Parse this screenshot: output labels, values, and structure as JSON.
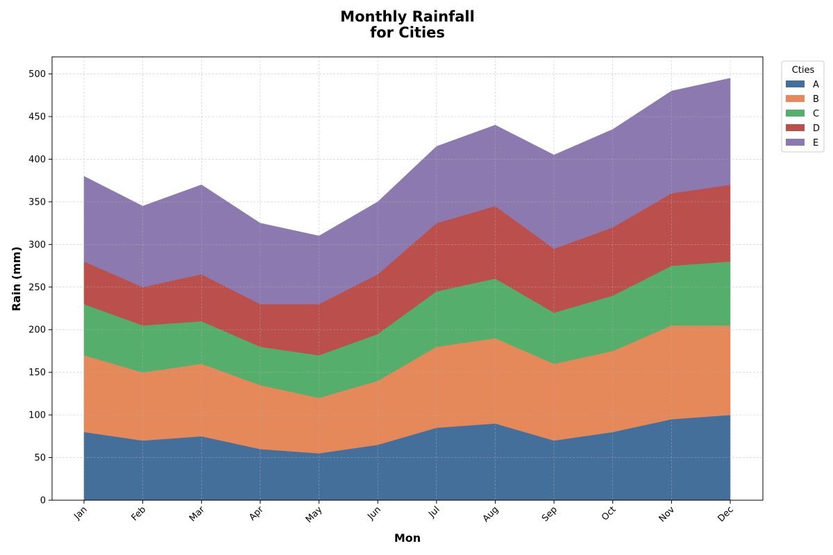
{
  "chart_data": {
    "type": "area",
    "stacked": true,
    "title_lines": [
      "Monthly Rainfall",
      "for Cities"
    ],
    "xlabel": "Mon",
    "ylabel": "Rain (mm)",
    "categories": [
      "Jan",
      "Feb",
      "Mar",
      "Apr",
      "May",
      "Jun",
      "Jul",
      "Aug",
      "Sep",
      "Oct",
      "Nov",
      "Dec"
    ],
    "ylim": [
      0,
      520
    ],
    "yticks": [
      0,
      50,
      100,
      150,
      200,
      250,
      300,
      350,
      400,
      450,
      500
    ],
    "grid": true,
    "legend": {
      "title": "Cties",
      "placement": "outside-top-right"
    },
    "series": [
      {
        "name": "A",
        "color": "#456f9b",
        "values": [
          80,
          70,
          75,
          60,
          55,
          65,
          85,
          90,
          70,
          80,
          95,
          100
        ]
      },
      {
        "name": "B",
        "color": "#e5895a",
        "values": [
          90,
          80,
          85,
          75,
          65,
          75,
          95,
          100,
          90,
          95,
          110,
          105
        ]
      },
      {
        "name": "C",
        "color": "#55ae6c",
        "values": [
          60,
          55,
          50,
          45,
          50,
          55,
          65,
          70,
          60,
          65,
          70,
          75
        ]
      },
      {
        "name": "D",
        "color": "#ba4f4c",
        "values": [
          50,
          45,
          55,
          50,
          60,
          70,
          80,
          85,
          75,
          80,
          85,
          90
        ]
      },
      {
        "name": "E",
        "color": "#8b79b0",
        "values": [
          100,
          95,
          105,
          95,
          80,
          85,
          90,
          95,
          110,
          115,
          120,
          125
        ]
      }
    ]
  }
}
